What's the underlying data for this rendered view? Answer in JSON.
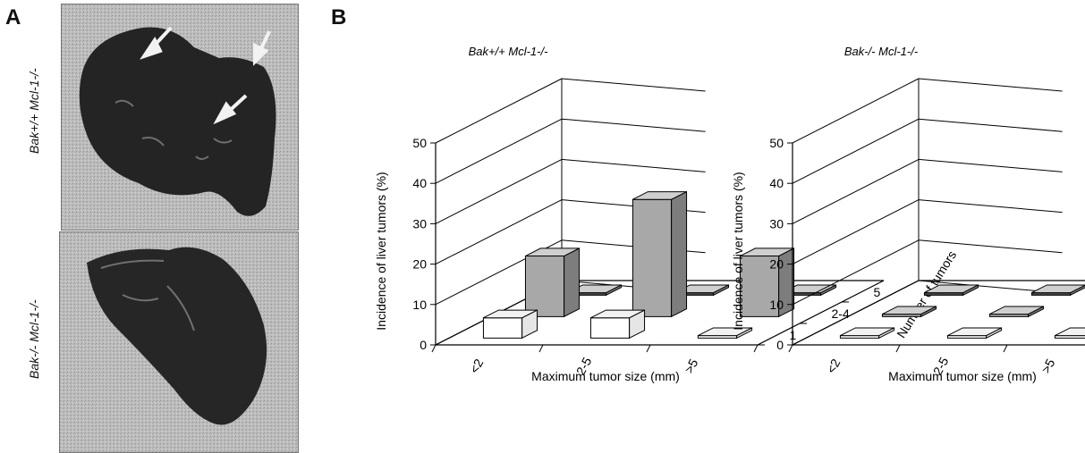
{
  "panel_a": {
    "letter": "A",
    "rows": [
      {
        "label": "Bak+/+ Mcl-1-/-"
      },
      {
        "label": "Bak-/- Mcl-1-/-"
      }
    ],
    "arrow_color": "#f2f2f2"
  },
  "panel_b": {
    "letter": "B"
  },
  "chart_data": [
    {
      "type": "bar",
      "title": "Bak+/+ Mcl-1-/-",
      "ylabel": "Incidence of liver tumors (%)",
      "xlabel": "Maximum tumor size (mm)",
      "zlabel": "Number of tumors",
      "categories": [
        "<2",
        "2-5",
        ">5"
      ],
      "depth_categories": [
        "1",
        "2-4",
        "5"
      ],
      "y_ticks": [
        "0",
        "10",
        "20",
        "30",
        "40",
        "50"
      ],
      "ylim": [
        0,
        50
      ],
      "series": [
        {
          "name": "1",
          "values": [
            5,
            5,
            0
          ],
          "color": "#ffffff"
        },
        {
          "name": "2-4",
          "values": [
            15,
            29,
            15
          ],
          "color": "#a8a8a8"
        },
        {
          "name": "5",
          "values": [
            0,
            0,
            0
          ],
          "color": "#4a4a4a"
        }
      ]
    },
    {
      "type": "bar",
      "title": "Bak-/- Mcl-1-/-",
      "ylabel": "Incidence of liver tumors (%)",
      "xlabel": "Maximum tumor size (mm)",
      "zlabel": "Number of tumors",
      "categories": [
        "<2",
        "2-5",
        ">5"
      ],
      "depth_categories": [
        "1",
        "2-4",
        "5"
      ],
      "y_ticks": [
        "0",
        "10",
        "20",
        "30",
        "40",
        "50"
      ],
      "ylim": [
        0,
        50
      ],
      "series": [
        {
          "name": "1",
          "values": [
            0,
            0,
            0
          ],
          "color": "#ffffff"
        },
        {
          "name": "2-4",
          "values": [
            0,
            0,
            0
          ],
          "color": "#a8a8a8"
        },
        {
          "name": "5",
          "values": [
            0,
            0,
            0
          ],
          "color": "#4a4a4a"
        }
      ]
    }
  ]
}
